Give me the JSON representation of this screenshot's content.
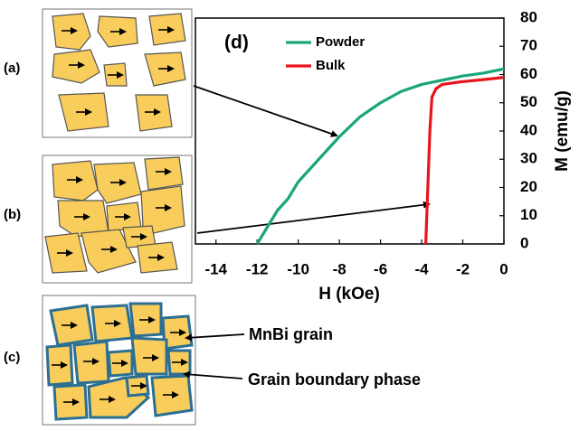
{
  "chart_data": {
    "type": "line",
    "panel_label": "(d)",
    "x_label": "H (kOe)",
    "y_label": "M (emu/g)",
    "annotations": [
      "(a)",
      "(b)",
      "(c)",
      "MnBi grain",
      "Grain boundary phase"
    ],
    "xlim": [
      -15,
      0
    ],
    "ylim": [
      0,
      80
    ],
    "xticks": [
      -14,
      -12,
      -10,
      -8,
      -6,
      -4,
      -2,
      0
    ],
    "yticks": [
      0,
      10,
      20,
      30,
      40,
      50,
      60,
      70,
      80
    ],
    "series": [
      {
        "name": "Powder",
        "color": "#1aa57a",
        "x": [
          -12,
          -11.5,
          -11,
          -10.5,
          -10,
          -9,
          -8,
          -7,
          -6,
          -5,
          -4,
          -3,
          -2,
          -1,
          0
        ],
        "values": [
          0,
          6,
          12,
          16,
          22,
          30,
          38,
          45,
          50,
          54,
          56.5,
          58,
          59.5,
          60.5,
          62
        ]
      },
      {
        "name": "Bulk",
        "color": "#e8141c",
        "x": [
          -3.8,
          -3.7,
          -3.6,
          -3.5,
          -3.3,
          -3,
          -2,
          -1,
          0
        ],
        "values": [
          0,
          20,
          40,
          52,
          55,
          56.5,
          57.5,
          58.2,
          59
        ]
      }
    ]
  }
}
